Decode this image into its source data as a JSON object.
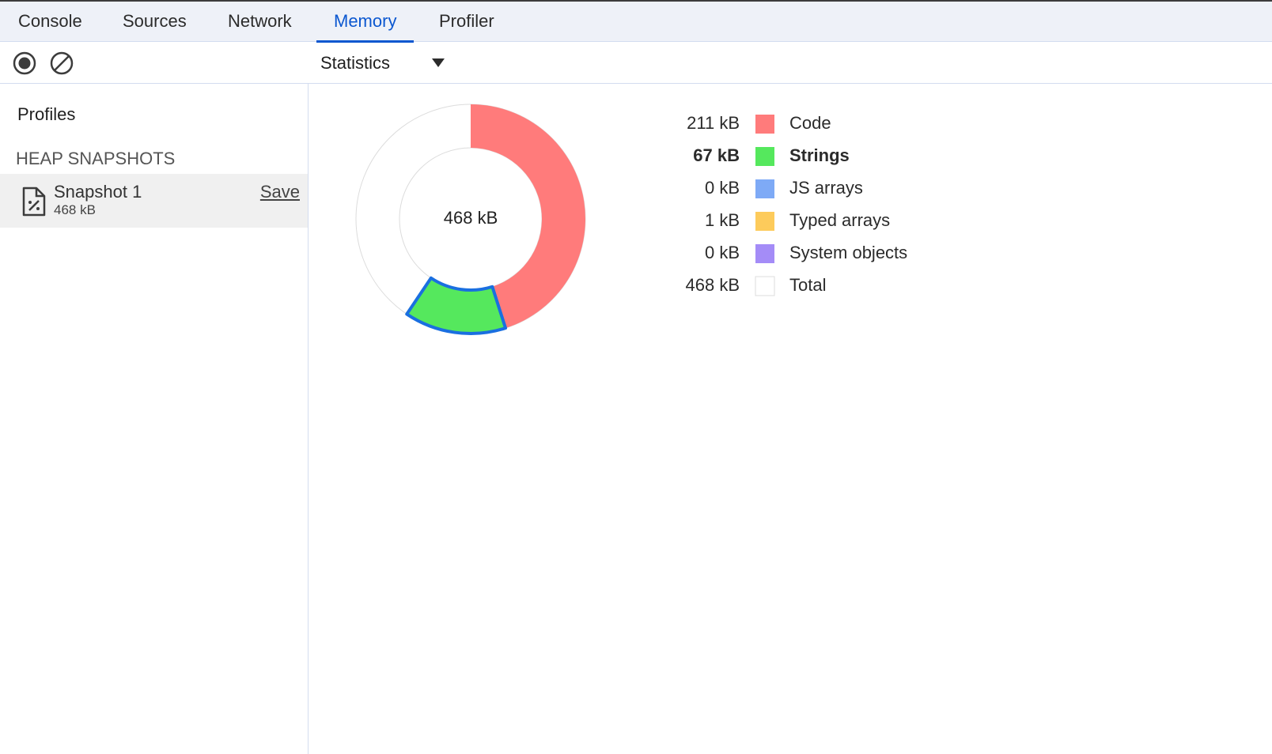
{
  "tabs": [
    "Console",
    "Sources",
    "Network",
    "Memory",
    "Profiler"
  ],
  "active_tab": 3,
  "toolbar": {
    "view": "Statistics"
  },
  "sidebar": {
    "title": "Profiles",
    "section": "HEAP SNAPSHOTS",
    "snapshot": {
      "name": "Snapshot 1",
      "size": "468 kB",
      "action": "Save"
    }
  },
  "statistics": {
    "items": [
      {
        "name": "Code",
        "value": 211,
        "value_label": "211 kB",
        "color": "#ff7b7b",
        "selected": false
      },
      {
        "name": "Strings",
        "value": 67,
        "value_label": "67 kB",
        "color": "#55e85d",
        "selected": true
      },
      {
        "name": "JS arrays",
        "value": 0,
        "value_label": "0 kB",
        "color": "#7eaaf6",
        "selected": false
      },
      {
        "name": "Typed arrays",
        "value": 1,
        "value_label": "1 kB",
        "color": "#fdcb5b",
        "selected": false
      },
      {
        "name": "System objects",
        "value": 0,
        "value_label": "0 kB",
        "color": "#a48cf7",
        "selected": false
      }
    ],
    "total": {
      "name": "Total",
      "value": 468,
      "value_label": "468 kB",
      "color": "#ffffff"
    }
  }
}
